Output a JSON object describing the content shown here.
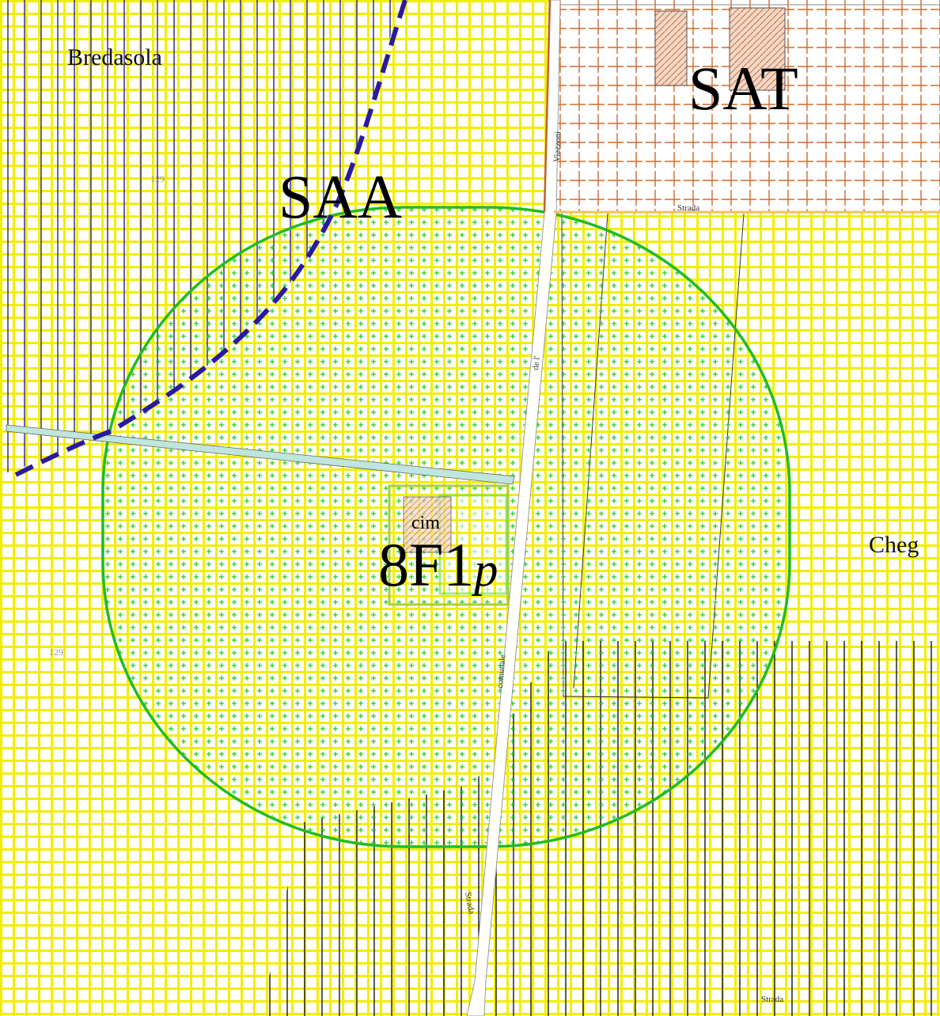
{
  "labels": {
    "bredasola": "Bredasola",
    "saa": "SAA",
    "sat": "SAT",
    "viazzoni": "Viazzoni",
    "strada_top": "Strada",
    "strada_bottom": "Strada",
    "strada_right": "Strada",
    "de_l": "de l'",
    "comunale": "comunale",
    "cim": "cim",
    "zone": "8F1",
    "zone_sub": "p",
    "cheg": "Cheg",
    "elevation_top": "129",
    "elevation_left": "129"
  }
}
